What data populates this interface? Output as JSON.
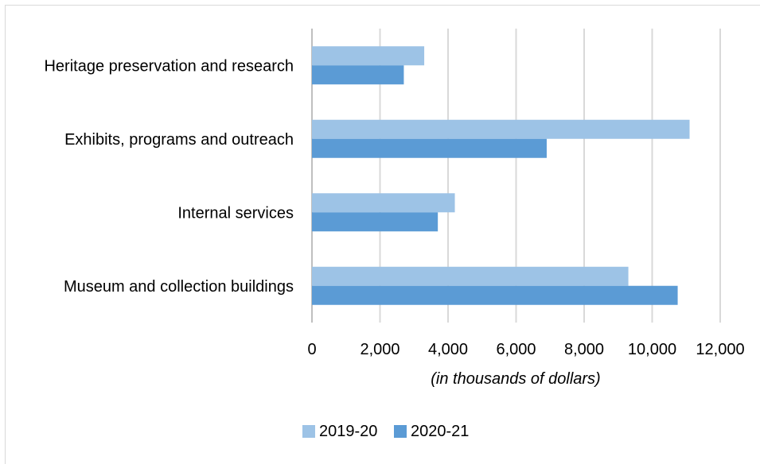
{
  "chart_data": {
    "type": "bar",
    "orientation": "horizontal",
    "categories": [
      "Heritage preservation and research",
      "Exhibits, programs and outreach",
      "Internal services",
      "Museum and collection buildings"
    ],
    "series": [
      {
        "name": "2019-20",
        "color": "#9dc3e6",
        "values": [
          3300,
          11100,
          4200,
          9300
        ]
      },
      {
        "name": "2020-21",
        "color": "#5b9bd5",
        "values": [
          2700,
          6900,
          3700,
          10750
        ]
      }
    ],
    "xlim": [
      0,
      12000
    ],
    "xticks": [
      "0",
      "2,000",
      "4,000",
      "6,000",
      "8,000",
      "10,000",
      "12,000"
    ],
    "xlabel": "(in thousands of dollars)",
    "grid": true,
    "legend_position": "bottom"
  }
}
